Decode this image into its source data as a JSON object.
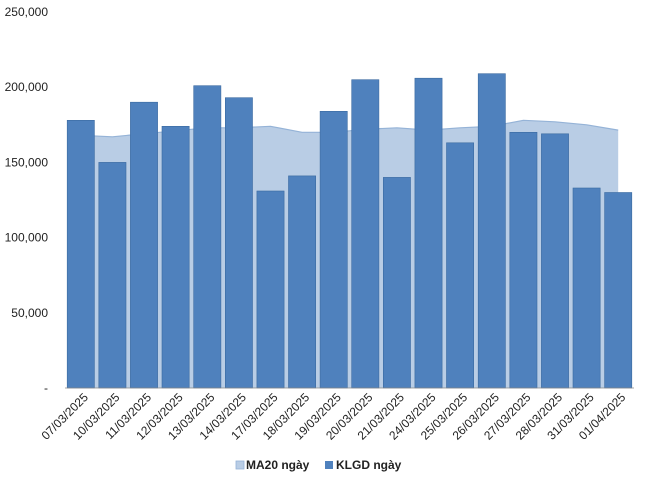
{
  "chart_data": {
    "type": "bar",
    "categories": [
      "07/03/2025",
      "10/03/2025",
      "11/03/2025",
      "12/03/2025",
      "13/03/2025",
      "14/03/2025",
      "17/03/2025",
      "18/03/2025",
      "19/03/2025",
      "20/03/2025",
      "21/03/2025",
      "24/03/2025",
      "25/03/2025",
      "26/03/2025",
      "27/03/2025",
      "28/03/2025",
      "31/03/2025",
      "01/04/2025"
    ],
    "series": [
      {
        "name": "KLGD ngày",
        "kind": "bar",
        "color": "#4F81BD",
        "values": [
          178000,
          150000,
          190000,
          174000,
          201000,
          193000,
          131000,
          141000,
          184000,
          205000,
          140000,
          206000,
          163000,
          209000,
          170000,
          169000,
          133000,
          130000
        ]
      },
      {
        "name": "MA20 ngày",
        "kind": "area",
        "color": "#B9CDE5",
        "line_color": "#95B3D7",
        "values": [
          168000,
          167000,
          169000,
          171000,
          173000,
          173000,
          174000,
          170000,
          170000,
          172000,
          173000,
          171500,
          173000,
          174000,
          178000,
          177000,
          175000,
          171500
        ]
      }
    ],
    "y_ticks": [
      "-",
      "50,000",
      "100,000",
      "150,000",
      "200,000",
      "250,000"
    ],
    "ylim": [
      0,
      250000
    ],
    "y_step": 50000,
    "title": "",
    "xlabel": "",
    "ylabel": "",
    "grid": false,
    "legend_position": "bottom"
  }
}
